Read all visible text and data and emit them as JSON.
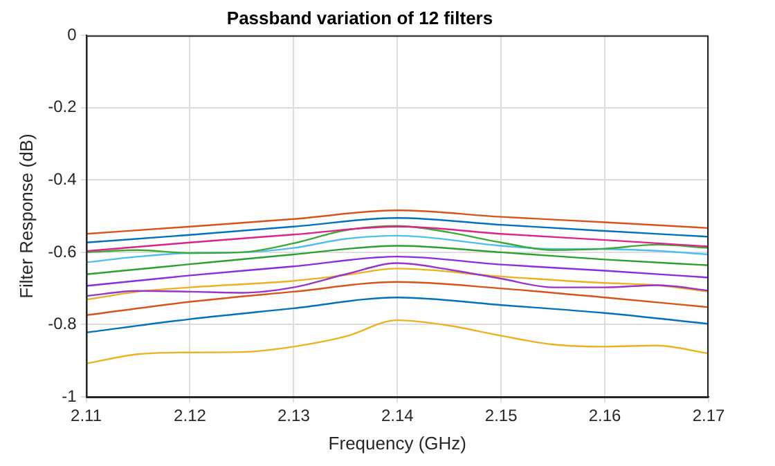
{
  "chart_data": {
    "type": "line",
    "title": "Passband variation of 12 filters",
    "xlabel": "Frequency (GHz)",
    "ylabel": "Filter Response (dB)",
    "xlim": [
      2.11,
      2.17
    ],
    "xticks": [
      2.11,
      2.12,
      2.13,
      2.14,
      2.15,
      2.16,
      2.17
    ],
    "ylim": [
      -1,
      0
    ],
    "yticks": [
      -1,
      -0.8,
      -0.6,
      -0.4,
      -0.2,
      0
    ],
    "grid": true,
    "legend": false,
    "marker": "none",
    "line_style": "solid",
    "series": [
      {
        "color": "#d95319",
        "x": [
          2.11,
          2.12,
          2.13,
          2.14,
          2.15,
          2.16,
          2.17
        ],
        "values": [
          -0.549,
          -0.529,
          -0.508,
          -0.484,
          -0.502,
          -0.517,
          -0.533
        ]
      },
      {
        "color": "#0072bd",
        "x": [
          2.11,
          2.12,
          2.13,
          2.14,
          2.15,
          2.16,
          2.17
        ],
        "values": [
          -0.573,
          -0.552,
          -0.529,
          -0.505,
          -0.524,
          -0.541,
          -0.557
        ]
      },
      {
        "color": "#e0218a",
        "x": [
          2.11,
          2.12,
          2.13,
          2.14,
          2.15,
          2.16,
          2.17
        ],
        "values": [
          -0.597,
          -0.573,
          -0.551,
          -0.529,
          -0.549,
          -0.566,
          -0.584
        ]
      },
      {
        "color": "#3aaa35",
        "x": [
          2.11,
          2.115,
          2.12,
          2.125,
          2.13,
          2.135,
          2.14,
          2.145,
          2.15,
          2.155,
          2.16,
          2.165,
          2.17
        ],
        "values": [
          -0.6,
          -0.594,
          -0.602,
          -0.6,
          -0.575,
          -0.539,
          -0.527,
          -0.545,
          -0.573,
          -0.594,
          -0.59,
          -0.579,
          -0.588
        ]
      },
      {
        "color": "#4dbeee",
        "x": [
          2.11,
          2.115,
          2.12,
          2.125,
          2.13,
          2.135,
          2.14,
          2.15,
          2.155,
          2.16,
          2.165,
          2.17
        ],
        "values": [
          -0.628,
          -0.612,
          -0.602,
          -0.6,
          -0.588,
          -0.563,
          -0.554,
          -0.582,
          -0.591,
          -0.591,
          -0.596,
          -0.606
        ]
      },
      {
        "color": "#2ca02c",
        "x": [
          2.11,
          2.12,
          2.13,
          2.14,
          2.15,
          2.16,
          2.17
        ],
        "values": [
          -0.661,
          -0.633,
          -0.606,
          -0.582,
          -0.6,
          -0.62,
          -0.636
        ]
      },
      {
        "color": "#8b2be2",
        "x": [
          2.11,
          2.12,
          2.13,
          2.14,
          2.15,
          2.16,
          2.17
        ],
        "values": [
          -0.693,
          -0.664,
          -0.639,
          -0.612,
          -0.634,
          -0.651,
          -0.67
        ]
      },
      {
        "color": "#9933cc",
        "x": [
          2.11,
          2.115,
          2.12,
          2.125,
          2.13,
          2.135,
          2.14,
          2.145,
          2.15,
          2.155,
          2.16,
          2.165,
          2.17
        ],
        "values": [
          -0.721,
          -0.707,
          -0.709,
          -0.712,
          -0.697,
          -0.661,
          -0.63,
          -0.648,
          -0.673,
          -0.697,
          -0.697,
          -0.691,
          -0.706
        ]
      },
      {
        "color": "#edb120",
        "x": [
          2.11,
          2.115,
          2.12,
          2.13,
          2.135,
          2.14,
          2.15,
          2.16,
          2.165,
          2.17
        ],
        "values": [
          -0.731,
          -0.709,
          -0.697,
          -0.679,
          -0.663,
          -0.645,
          -0.667,
          -0.685,
          -0.691,
          -0.709
        ]
      },
      {
        "color": "#d95319",
        "x": [
          2.11,
          2.12,
          2.13,
          2.14,
          2.15,
          2.16,
          2.17
        ],
        "values": [
          -0.774,
          -0.737,
          -0.709,
          -0.682,
          -0.7,
          -0.725,
          -0.752
        ]
      },
      {
        "color": "#0072bd",
        "x": [
          2.11,
          2.12,
          2.13,
          2.14,
          2.15,
          2.16,
          2.17
        ],
        "values": [
          -0.822,
          -0.785,
          -0.755,
          -0.725,
          -0.746,
          -0.768,
          -0.798
        ]
      },
      {
        "color": "#edb120",
        "x": [
          2.11,
          2.115,
          2.12,
          2.125,
          2.13,
          2.135,
          2.14,
          2.145,
          2.15,
          2.155,
          2.16,
          2.165,
          2.17
        ],
        "values": [
          -0.908,
          -0.882,
          -0.877,
          -0.876,
          -0.861,
          -0.833,
          -0.788,
          -0.803,
          -0.831,
          -0.855,
          -0.861,
          -0.858,
          -0.88
        ]
      }
    ]
  }
}
